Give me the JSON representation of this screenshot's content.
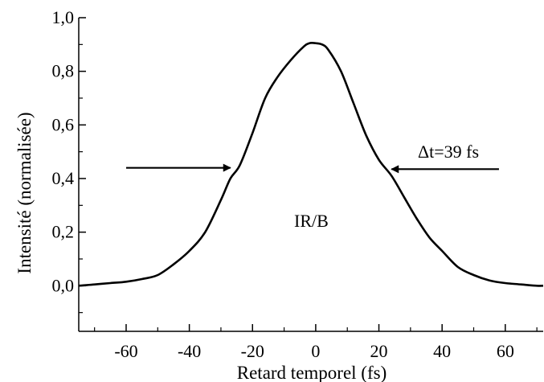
{
  "chart_data": {
    "type": "line",
    "xlabel": "Retard temporel (fs)",
    "ylabel": "Intensité (normalisée)",
    "xlim": [
      -75,
      72
    ],
    "ylim": [
      -0.17,
      1.0
    ],
    "x_ticks": [
      -60,
      -40,
      -20,
      0,
      20,
      40,
      60
    ],
    "x_tick_labels": [
      "-60",
      "-40",
      "-20",
      "0",
      "20",
      "40",
      "60"
    ],
    "y_ticks": [
      0.0,
      0.2,
      0.4,
      0.6,
      0.8,
      1.0
    ],
    "y_tick_labels": [
      "0,0",
      "0,2",
      "0,4",
      "0,6",
      "0,8",
      "1,0"
    ],
    "grid": false,
    "series": [
      {
        "color": "#000000",
        "x": [
          -75,
          -70,
          -65,
          -60,
          -55,
          -50,
          -45,
          -40,
          -35,
          -30,
          -27,
          -24,
          -20,
          -16,
          -12,
          -8,
          -4,
          -2,
          0,
          2,
          4,
          8,
          12,
          16,
          20,
          24,
          28,
          32,
          36,
          40,
          45,
          50,
          55,
          60,
          65,
          70,
          72
        ],
        "y": [
          0.0,
          0.005,
          0.01,
          0.015,
          0.025,
          0.04,
          0.08,
          0.13,
          0.2,
          0.32,
          0.4,
          0.45,
          0.57,
          0.7,
          0.78,
          0.84,
          0.89,
          0.905,
          0.905,
          0.9,
          0.88,
          0.8,
          0.68,
          0.56,
          0.47,
          0.41,
          0.33,
          0.25,
          0.18,
          0.13,
          0.07,
          0.04,
          0.02,
          0.01,
          0.005,
          0.0,
          0.0
        ]
      }
    ],
    "annotations": {
      "fwhm_label": "Δt=39 fs",
      "center_label": "IR/B",
      "left_arrow": {
        "x_start": -60,
        "x_end": -27,
        "y": 0.44
      },
      "right_arrow": {
        "x_start": 58,
        "x_end": 24,
        "y": 0.435
      }
    }
  }
}
